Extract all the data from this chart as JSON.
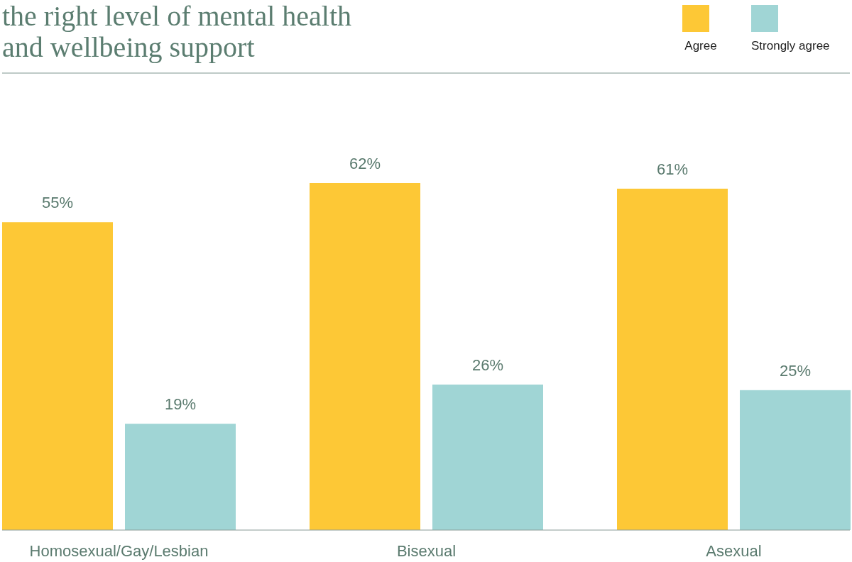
{
  "chart_data": {
    "type": "bar",
    "title": "the right level of mental health and wellbeing support",
    "categories": [
      "Homosexual/Gay/Lesbian",
      "Bisexual",
      "Asexual"
    ],
    "series": [
      {
        "name": "Agree",
        "color": "#fdc836",
        "values": [
          55,
          62,
          61
        ],
        "value_labels": [
          "55%",
          "62%",
          "61%"
        ]
      },
      {
        "name": "Strongly agree",
        "color": "#a0d5d5",
        "values": [
          19,
          26,
          25
        ],
        "value_labels": [
          "19%",
          "26%",
          "25%"
        ]
      }
    ],
    "legend": "top right"
  }
}
